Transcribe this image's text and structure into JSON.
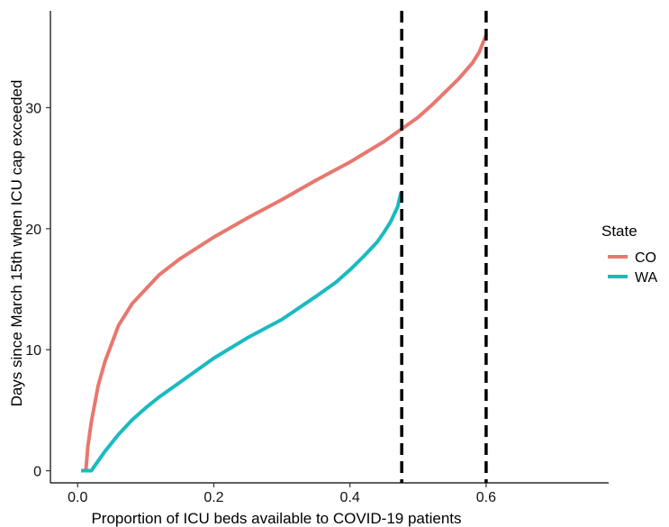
{
  "chart_data": {
    "type": "line",
    "title": "",
    "xlabel": "Proportion of ICU beds available to COVID-19 patients",
    "ylabel": "Days since March 15th when ICU cap exceeded",
    "xlim": [
      -0.04,
      0.78
    ],
    "ylim": [
      -1,
      38
    ],
    "x_ticks": [
      0,
      0.2,
      0.4,
      0.6
    ],
    "x_tick_labels": [
      "0.0",
      "0.2",
      "0.4",
      "0.6"
    ],
    "y_ticks": [
      0,
      10,
      20,
      30
    ],
    "y_tick_labels": [
      "0",
      "10",
      "20",
      "30"
    ],
    "grid": false,
    "legend": {
      "title": "State",
      "position": "right"
    },
    "series": [
      {
        "name": "CO",
        "color": "#E8776F",
        "x": [
          0.005,
          0.012,
          0.015,
          0.02,
          0.03,
          0.04,
          0.05,
          0.06,
          0.08,
          0.1,
          0.12,
          0.15,
          0.2,
          0.25,
          0.3,
          0.35,
          0.4,
          0.45,
          0.5,
          0.52,
          0.54,
          0.56,
          0.58,
          0.59,
          0.6
        ],
        "values": [
          0,
          0,
          2,
          4,
          7,
          9,
          10.5,
          12,
          13.8,
          15,
          16.2,
          17.5,
          19.3,
          20.9,
          22.4,
          24,
          25.5,
          27.2,
          29.2,
          30.2,
          31.3,
          32.4,
          33.7,
          34.6,
          36
        ]
      },
      {
        "name": "WA",
        "color": "#1ABAC1",
        "x": [
          0.005,
          0.02,
          0.03,
          0.04,
          0.06,
          0.08,
          0.1,
          0.12,
          0.15,
          0.2,
          0.25,
          0.3,
          0.35,
          0.38,
          0.4,
          0.42,
          0.44,
          0.45,
          0.46,
          0.47,
          0.475
        ],
        "values": [
          0,
          0,
          0.8,
          1.6,
          3,
          4.2,
          5.2,
          6.1,
          7.3,
          9.3,
          11,
          12.5,
          14.4,
          15.6,
          16.6,
          17.7,
          18.9,
          19.7,
          20.6,
          21.8,
          23
        ]
      }
    ],
    "reference_lines": [
      {
        "x": 0.476,
        "style": "dashed",
        "color": "#000000"
      },
      {
        "x": 0.6,
        "style": "dashed",
        "color": "#000000"
      }
    ]
  }
}
